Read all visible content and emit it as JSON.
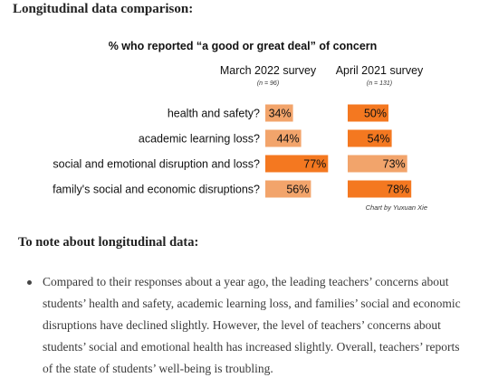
{
  "heading": "Longitudinal data comparison:",
  "chart_data": {
    "type": "bar",
    "title": "% who reported “a good or great deal” of concern",
    "categories": [
      "health and safety?",
      "academic learning loss?",
      "social and emotional disruption and loss?",
      "family's social and economic disruptions?"
    ],
    "series": [
      {
        "name": "March 2022 survey",
        "n_label": "(n = 96)",
        "values": [
          34,
          44,
          77,
          56
        ],
        "value_labels": [
          "34%",
          "44%",
          "77%",
          "56%"
        ],
        "colors": [
          "#f2a46b",
          "#f2a46b",
          "#f47820",
          "#f2a46b"
        ]
      },
      {
        "name": "April 2021 survey",
        "n_label": "(n = 131)",
        "values": [
          50,
          54,
          73,
          78
        ],
        "value_labels": [
          "50%",
          "54%",
          "73%",
          "78%"
        ],
        "colors": [
          "#f47820",
          "#f47820",
          "#f2a46b",
          "#f47820"
        ]
      }
    ],
    "ylim": [
      0,
      100
    ],
    "credit": "Chart by Yuxuan Xie"
  },
  "notes": {
    "heading": "To note about longitudinal data:",
    "bullet": "Compared to their responses about a year ago, the leading teachers’ concerns about students’ health and safety, academic learning loss, and families’ social and economic disruptions have declined slightly. However, the level of teachers’ concerns about students’ social and emotional health has increased slightly. Overall, teachers’ reports of the state of students’ well-being is troubling."
  }
}
